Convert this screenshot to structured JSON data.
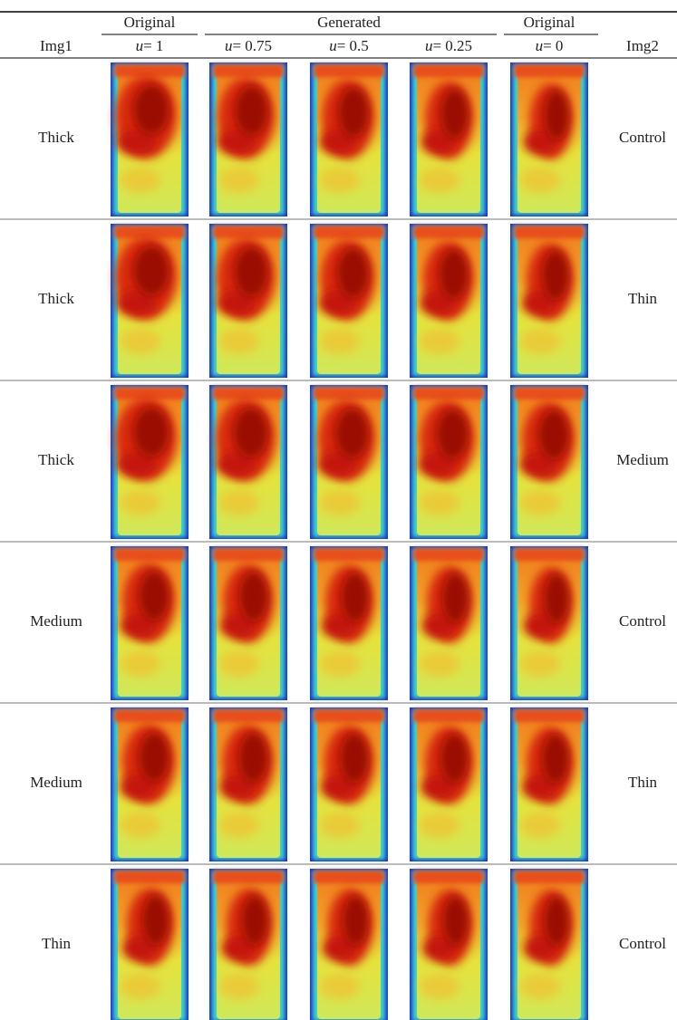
{
  "header": {
    "groups": [
      "Original",
      "Generated",
      "Original"
    ],
    "columns": {
      "left": "Img1",
      "right": "Img2",
      "steps": [
        {
          "symbol": "u",
          "value": "= 1"
        },
        {
          "symbol": "u",
          "value": "= 0.75"
        },
        {
          "symbol": "u",
          "value": "= 0.5"
        },
        {
          "symbol": "u",
          "value": "= 0.25"
        },
        {
          "symbol": "u",
          "value": "= 0"
        }
      ]
    }
  },
  "table": {
    "rows": [
      [
        "Thick",
        "Control"
      ],
      [
        "Thick",
        "Thin"
      ],
      [
        "Thick",
        "Medium"
      ],
      [
        "Medium",
        "Control"
      ],
      [
        "Medium",
        "Thin"
      ],
      [
        "Thin",
        "Control"
      ]
    ]
  }
}
